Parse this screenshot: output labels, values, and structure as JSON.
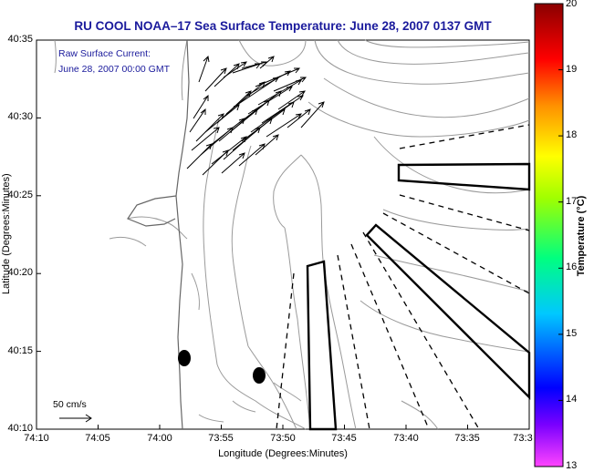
{
  "title": "RU COOL  NOAA–17  Sea Surface Temperature:  June 28, 2007 0137 GMT",
  "current_label": {
    "line1": "Raw Surface Current:",
    "line2": "June 28, 2007 00:00 GMT"
  },
  "scale_label": "50 cm/s",
  "x_axis": {
    "label": "Longitude (Degrees:Minutes)",
    "ticks": [
      "74:10",
      "74:05",
      "74:00",
      "73:55",
      "73:50",
      "73:45",
      "73:40",
      "73:35",
      "73:3"
    ]
  },
  "y_axis": {
    "label": "Latitude (Degrees:Minutes)",
    "ticks": [
      "40:35",
      "40:30",
      "40:25",
      "40:20",
      "40:15",
      "40:10"
    ]
  },
  "colorbar": {
    "label": "Temperature (°C)",
    "ticks": [
      "20",
      "19",
      "18",
      "17",
      "16",
      "15",
      "14",
      "13"
    ],
    "min": 13,
    "max": 20,
    "colors": [
      "#ff44ff",
      "#7a00ff",
      "#0000ff",
      "#00c8ff",
      "#00ff80",
      "#a0ff00",
      "#ffff00",
      "#ff9000",
      "#ff0000",
      "#8a0000"
    ]
  },
  "colors": {
    "title": "#1a1a9c",
    "land_contours": "#9a9a9a",
    "coastline": "#666666"
  }
}
